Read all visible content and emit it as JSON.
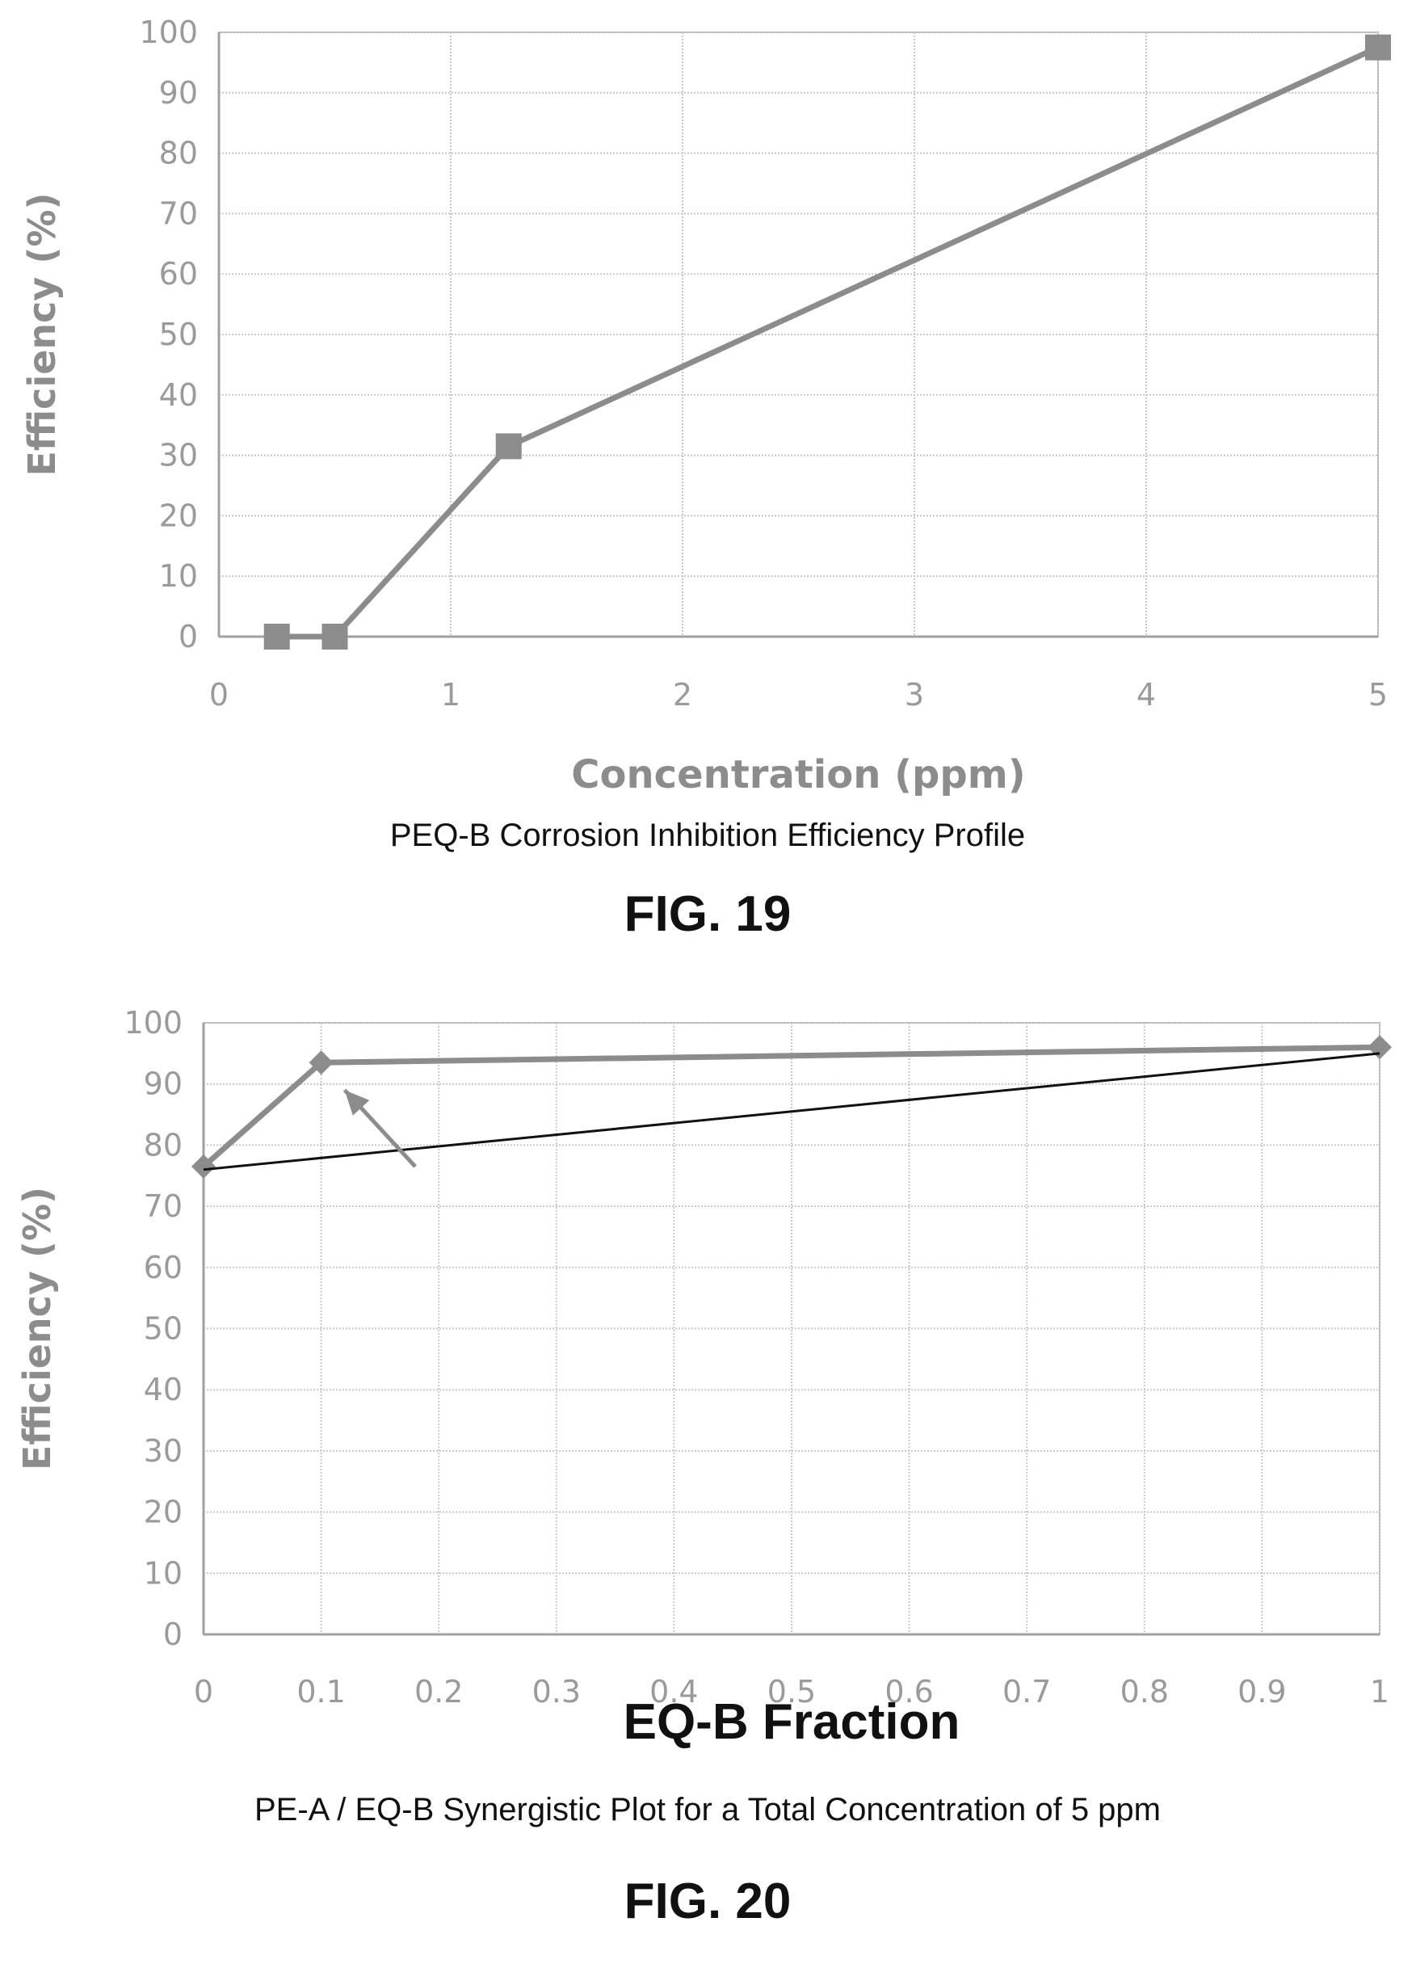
{
  "figures": [
    {
      "fig_label": "FIG. 19",
      "caption": "PEQ-B Corrosion Inhibition Efficiency Profile"
    },
    {
      "fig_label": "FIG. 20",
      "caption": "PE-A / EQ-B Synergistic Plot for a Total Concentration of 5 ppm"
    }
  ],
  "chart_data": [
    {
      "type": "line",
      "title": "",
      "xlabel": "Concentration (ppm)",
      "ylabel": "Efficiency (%)",
      "xlim": [
        0,
        5
      ],
      "ylim": [
        0,
        100
      ],
      "xticks": [
        "0",
        "1",
        "2",
        "3",
        "4",
        "5"
      ],
      "yticks": [
        "0",
        "10",
        "20",
        "30",
        "40",
        "50",
        "60",
        "70",
        "80",
        "90",
        "100"
      ],
      "grid": true,
      "series": [
        {
          "x": [
            0.25,
            0.5,
            1.25,
            5
          ],
          "y": [
            0,
            0,
            31.5,
            97.5
          ],
          "marker": "square",
          "color": "#8c8c8c"
        }
      ]
    },
    {
      "type": "line",
      "title": "",
      "xlabel": "EQ-B Fraction",
      "ylabel": "Efficiency (%)",
      "xlim": [
        0,
        1
      ],
      "ylim": [
        0,
        100
      ],
      "xticks": [
        "0",
        "0.1",
        "0.2",
        "0.3",
        "0.4",
        "0.5",
        "0.6",
        "0.7",
        "0.8",
        "0.9",
        "1"
      ],
      "yticks": [
        "0",
        "10",
        "20",
        "30",
        "40",
        "50",
        "60",
        "70",
        "80",
        "90",
        "100"
      ],
      "grid": true,
      "series": [
        {
          "x": [
            0,
            0.1,
            1
          ],
          "y": [
            76.5,
            93.5,
            96
          ],
          "marker": "diamond",
          "color": "#8c8c8c"
        },
        {
          "x": [
            0,
            1
          ],
          "y": [
            76,
            95
          ],
          "marker": "none",
          "color": "#111111"
        }
      ],
      "annotations": [
        {
          "type": "arrow",
          "from": [
            0.18,
            76.5
          ],
          "to": [
            0.12,
            89
          ]
        }
      ]
    }
  ]
}
